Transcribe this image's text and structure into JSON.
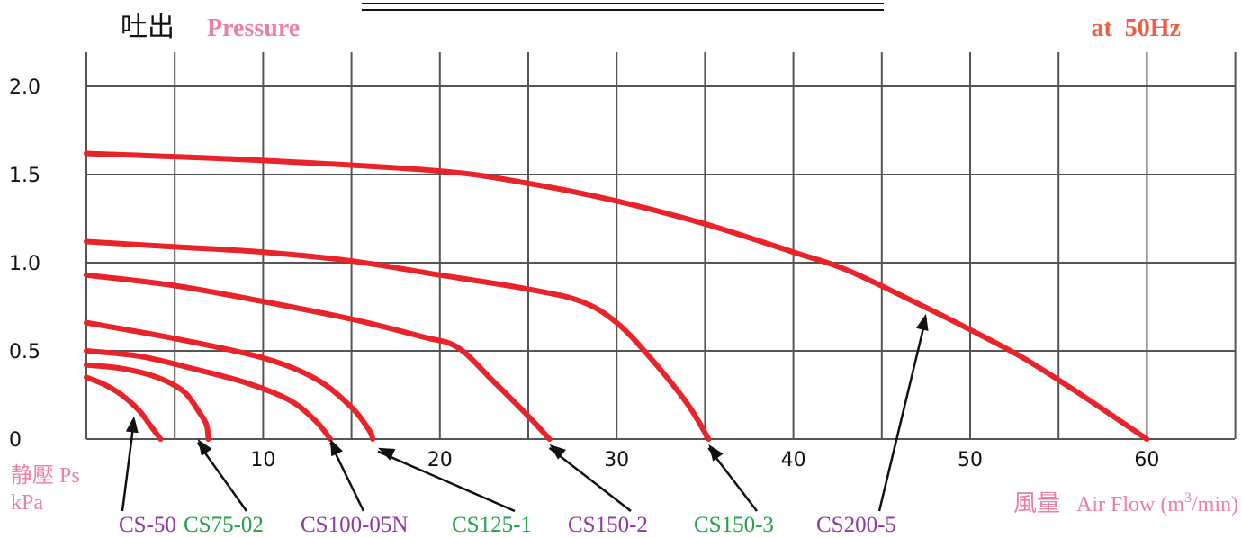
{
  "chart_data": {
    "type": "line",
    "title_prefix": "吐出",
    "title": "Pressure",
    "frequency": "at  50Hz",
    "ylabel": "静壓 Ps",
    "yunit": "kPa",
    "xlabel_prefix": "風量",
    "xlabel": "Air Flow (m",
    "xlabel_sup": "3",
    "xlabel_suffix": "/min)",
    "xlim": [
      0,
      65
    ],
    "ylim": [
      0,
      2.2
    ],
    "x_ticks": [
      10,
      20,
      30,
      40,
      50,
      60
    ],
    "x_tick_labels": [
      "10",
      "20",
      "30",
      "40",
      "50",
      "60"
    ],
    "y_ticks": [
      0,
      0.5,
      1.0,
      1.5,
      2.0
    ],
    "y_tick_labels": [
      "0",
      "0.5",
      "1.0",
      "1.5",
      "2.0"
    ],
    "grid": true,
    "series": [
      {
        "name": "CS-50",
        "label_color": "#8e3aa0",
        "arrow_tip": [
          2.7,
          0.13
        ],
        "points": [
          [
            0,
            0.35
          ],
          [
            1,
            0.31
          ],
          [
            2,
            0.25
          ],
          [
            3,
            0.16
          ],
          [
            3.6,
            0.08
          ],
          [
            4.2,
            0.0
          ]
        ]
      },
      {
        "name": "CS75-02",
        "label_color": "#22a24a",
        "arrow_tip": [
          6.3,
          0.0
        ],
        "points": [
          [
            0,
            0.42
          ],
          [
            2,
            0.4
          ],
          [
            4,
            0.35
          ],
          [
            5.5,
            0.27
          ],
          [
            6.4,
            0.15
          ],
          [
            6.8,
            0.08
          ],
          [
            6.9,
            0.0
          ]
        ]
      },
      {
        "name": "CS100-05N",
        "label_color": "#8e3aa0",
        "arrow_tip": [
          13.8,
          0.0
        ],
        "points": [
          [
            0,
            0.5
          ],
          [
            3,
            0.47
          ],
          [
            6,
            0.4
          ],
          [
            9,
            0.32
          ],
          [
            11.5,
            0.22
          ],
          [
            13,
            0.1
          ],
          [
            13.8,
            0.0
          ]
        ]
      },
      {
        "name": "CS125-1",
        "label_color": "#22a24a",
        "arrow_tip": [
          16.5,
          -0.05
        ],
        "points": [
          [
            0,
            0.66
          ],
          [
            5,
            0.57
          ],
          [
            10,
            0.46
          ],
          [
            13,
            0.34
          ],
          [
            15,
            0.18
          ],
          [
            16,
            0.05
          ],
          [
            16.2,
            0.0
          ]
        ]
      },
      {
        "name": "CS150-2",
        "label_color": "#8e3aa0",
        "arrow_tip": [
          26.2,
          -0.03
        ],
        "points": [
          [
            0,
            0.93
          ],
          [
            5,
            0.87
          ],
          [
            10,
            0.78
          ],
          [
            15,
            0.68
          ],
          [
            19,
            0.58
          ],
          [
            21,
            0.52
          ],
          [
            23,
            0.33
          ],
          [
            25,
            0.13
          ],
          [
            26.2,
            0.0
          ]
        ]
      },
      {
        "name": "CS150-3",
        "label_color": "#22a24a",
        "arrow_tip": [
          35.2,
          -0.03
        ],
        "points": [
          [
            0,
            1.12
          ],
          [
            5,
            1.09
          ],
          [
            10,
            1.06
          ],
          [
            15,
            1.01
          ],
          [
            20,
            0.93
          ],
          [
            25,
            0.85
          ],
          [
            28,
            0.78
          ],
          [
            30,
            0.66
          ],
          [
            32,
            0.45
          ],
          [
            34,
            0.2
          ],
          [
            35.2,
            0.0
          ]
        ]
      },
      {
        "name": "CS200-5",
        "label_color": "#8e3aa0",
        "arrow_tip": [
          47.5,
          0.71
        ],
        "points": [
          [
            0,
            1.62
          ],
          [
            10,
            1.58
          ],
          [
            20,
            1.52
          ],
          [
            25,
            1.45
          ],
          [
            30,
            1.35
          ],
          [
            35,
            1.22
          ],
          [
            40,
            1.06
          ],
          [
            43,
            0.96
          ],
          [
            47,
            0.77
          ],
          [
            50,
            0.62
          ],
          [
            53,
            0.46
          ],
          [
            56,
            0.27
          ],
          [
            60,
            0.0
          ]
        ]
      }
    ]
  },
  "colors": {
    "curve": "#e8232a",
    "grid": "#555555",
    "title_pink": "#ec7fa4",
    "frequency_orange": "#ee5f45"
  }
}
